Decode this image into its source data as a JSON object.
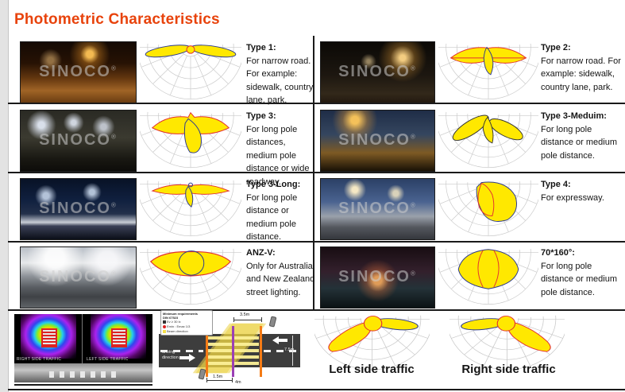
{
  "title": "Photometric Characteristics",
  "watermark": "SINOCO",
  "registered_mark": "®",
  "rows": [
    {
      "left": {
        "type_label": "Type 1:",
        "description": "For narrow road. For example: sidewalk, country lane, park."
      },
      "right": {
        "type_label": "Type 2:",
        "description": "For narrow road. For example: sidewalk, country lane, park."
      }
    },
    {
      "left": {
        "type_label": "Type 3:",
        "description": "For long pole distances, medium pole distance or wide roadway."
      },
      "right": {
        "type_label": "Type 3-Meduim:",
        "description": "For long pole distance or medium pole distance."
      }
    },
    {
      "left": {
        "type_label": "Type 3-Long:",
        "description": "For long pole distance or medium pole distance."
      },
      "right": {
        "type_label": "Type 4:",
        "description": "For expressway."
      }
    },
    {
      "left": {
        "type_label": "ANZ-V:",
        "description": "Only for Australia and New Zealand street lighting."
      },
      "right": {
        "type_label": "70*160°:",
        "description": "For long pole distance or medium pole distance."
      }
    }
  ],
  "bottom": {
    "heatmap": {
      "right_panel_label": "RIGHT SIDE TRAFFIC",
      "left_panel_label": "LEFT SIDE TRAFFIC"
    },
    "crosswalk_diagram": {
      "legend_title_line1": "Minimum requirements",
      "legend_title_line2": "DIN 67523",
      "legend_items": [
        "Ev ≥ 30 lx",
        "Emin : Emax 1/3",
        "Beam direction"
      ],
      "dim_top": "3.5m",
      "dim_right": "7.5m",
      "dim_bottom_left": "1.5m",
      "dim_bottom_center": "4m",
      "driving_direction_label": "driving direction"
    },
    "left_traffic_label": "Left side traffic",
    "right_traffic_label": "Right side traffic"
  },
  "colors": {
    "title": "#e8430c",
    "curve_fill": "#ffe800",
    "curve_stroke_blue": "#2b3990",
    "curve_stroke_red": "#e23030",
    "polar_grid": "#c9c9c9"
  }
}
